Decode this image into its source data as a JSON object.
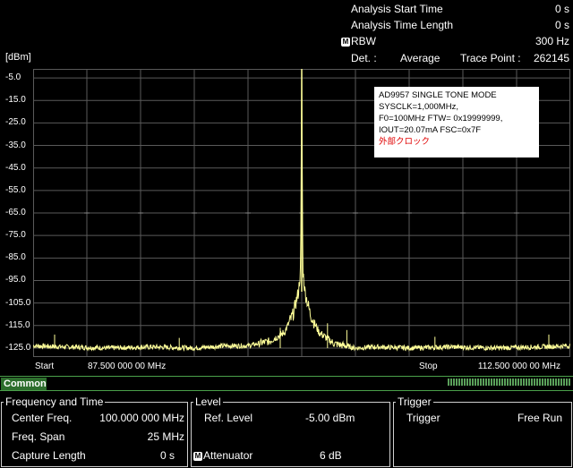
{
  "header": {
    "analysis_start_time_label": "Analysis Start Time",
    "analysis_start_time_value": "0 s",
    "analysis_time_length_label": "Analysis Time Length",
    "analysis_time_length_value": "0 s",
    "rbw_marker": "M",
    "rbw_label": "RBW",
    "rbw_value": "300 Hz",
    "det_label": "Det. :",
    "det_value": "Average",
    "trace_point_label": "Trace Point :",
    "trace_point_value": "262145"
  },
  "plot": {
    "y_unit": "[dBm]",
    "y_ticks": [
      "-5.0",
      "-15.0",
      "-25.0",
      "-35.0",
      "-45.0",
      "-55.0",
      "-65.0",
      "-75.0",
      "-85.0",
      "-95.0",
      "-105.0",
      "-115.0",
      "-125.0"
    ],
    "start_label": "Start",
    "start_value": "87.500 000 00 MHz",
    "stop_label": "Stop",
    "stop_value": "112.500 000 00 MHz",
    "trace_color": "#ffff99",
    "grid_color": "#5a5a5a"
  },
  "annotation": {
    "line1": "AD9957 SINGLE TONE MODE",
    "line2": "SYSCLK=1,000MHz,",
    "line3": "F0=100MHz FTW= 0x19999999,",
    "line4": "IOUT=20.07mA FSC=0x7F",
    "line5": "外部クロック"
  },
  "chart_data": {
    "type": "line",
    "xlabel": "",
    "ylabel": "[dBm]",
    "xlim": [
      87.5,
      112.5
    ],
    "ylim": [
      -129,
      -1
    ],
    "grid": true,
    "series": [
      {
        "x": [
          87.5,
          89.0,
          91.0,
          93.0,
          95.0,
          96.5,
          97.5,
          98.5,
          99.2,
          99.6,
          99.85,
          99.95,
          100.0,
          100.05,
          100.15,
          100.4,
          100.8,
          101.5,
          102.5,
          103.5,
          105.0,
          107.0,
          109.0,
          111.0,
          112.5
        ],
        "y": [
          -124,
          -124.5,
          -125,
          -124.5,
          -125,
          -124,
          -124,
          -122,
          -118,
          -110,
          -100,
          -90,
          -1,
          -90,
          -100,
          -110,
          -118,
          -123,
          -125,
          -124.5,
          -125,
          -124.5,
          -125,
          -124.5,
          -124
        ]
      }
    ],
    "spurs": [
      {
        "x": 88.5,
        "y": -119
      },
      {
        "x": 94.3,
        "y": -120.5
      },
      {
        "x": 99.0,
        "y": -116
      },
      {
        "x": 101.2,
        "y": -114
      },
      {
        "x": 102.1,
        "y": -117
      },
      {
        "x": 106.2,
        "y": -120
      },
      {
        "x": 111.5,
        "y": -119
      }
    ]
  },
  "tabs": {
    "common": "Common"
  },
  "freq_panel": {
    "title": "Frequency and Time",
    "center_label": "Center Freq.",
    "center_value": "100.000 000 MHz",
    "span_label": "Freq. Span",
    "span_value": "25 MHz",
    "capture_label": "Capture Length",
    "capture_value": "0 s"
  },
  "level_panel": {
    "title": "Level",
    "ref_label": "Ref. Level",
    "ref_value": "-5.00 dBm",
    "att_marker": "M",
    "att_label": "Attenuator",
    "att_value": "6 dB"
  },
  "trigger_panel": {
    "title": "Trigger",
    "trigger_label": "Trigger",
    "trigger_value": "Free Run"
  }
}
